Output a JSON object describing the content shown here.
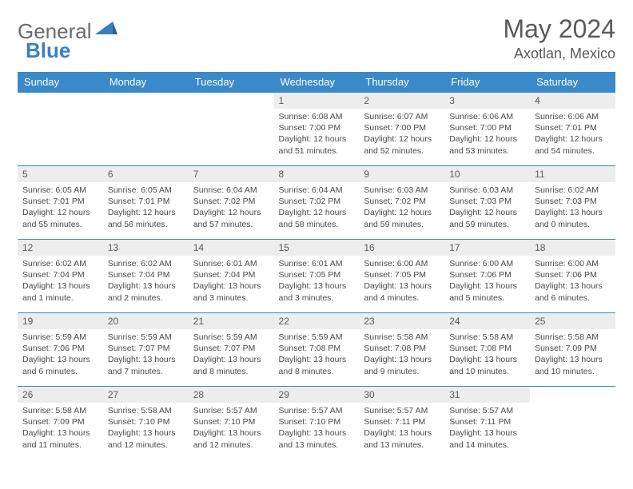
{
  "brand": {
    "part1": "General",
    "part2": "Blue"
  },
  "title": "May 2024",
  "location": "Axotlan, Mexico",
  "colors": {
    "header_bg": "#3a89c9",
    "header_text": "#ffffff",
    "daynum_bg": "#ededed",
    "border": "#3a89c9",
    "text": "#4a4a4a",
    "brand_blue": "#3a7fc4",
    "brand_gray": "#6b6b6b"
  },
  "day_headers": [
    "Sunday",
    "Monday",
    "Tuesday",
    "Wednesday",
    "Thursday",
    "Friday",
    "Saturday"
  ],
  "weeks": [
    [
      {
        "n": "",
        "lines": []
      },
      {
        "n": "",
        "lines": []
      },
      {
        "n": "",
        "lines": []
      },
      {
        "n": "1",
        "lines": [
          "Sunrise: 6:08 AM",
          "Sunset: 7:00 PM",
          "Daylight: 12 hours",
          "and 51 minutes."
        ]
      },
      {
        "n": "2",
        "lines": [
          "Sunrise: 6:07 AM",
          "Sunset: 7:00 PM",
          "Daylight: 12 hours",
          "and 52 minutes."
        ]
      },
      {
        "n": "3",
        "lines": [
          "Sunrise: 6:06 AM",
          "Sunset: 7:00 PM",
          "Daylight: 12 hours",
          "and 53 minutes."
        ]
      },
      {
        "n": "4",
        "lines": [
          "Sunrise: 6:06 AM",
          "Sunset: 7:01 PM",
          "Daylight: 12 hours",
          "and 54 minutes."
        ]
      }
    ],
    [
      {
        "n": "5",
        "lines": [
          "Sunrise: 6:05 AM",
          "Sunset: 7:01 PM",
          "Daylight: 12 hours",
          "and 55 minutes."
        ]
      },
      {
        "n": "6",
        "lines": [
          "Sunrise: 6:05 AM",
          "Sunset: 7:01 PM",
          "Daylight: 12 hours",
          "and 56 minutes."
        ]
      },
      {
        "n": "7",
        "lines": [
          "Sunrise: 6:04 AM",
          "Sunset: 7:02 PM",
          "Daylight: 12 hours",
          "and 57 minutes."
        ]
      },
      {
        "n": "8",
        "lines": [
          "Sunrise: 6:04 AM",
          "Sunset: 7:02 PM",
          "Daylight: 12 hours",
          "and 58 minutes."
        ]
      },
      {
        "n": "9",
        "lines": [
          "Sunrise: 6:03 AM",
          "Sunset: 7:02 PM",
          "Daylight: 12 hours",
          "and 59 minutes."
        ]
      },
      {
        "n": "10",
        "lines": [
          "Sunrise: 6:03 AM",
          "Sunset: 7:03 PM",
          "Daylight: 12 hours",
          "and 59 minutes."
        ]
      },
      {
        "n": "11",
        "lines": [
          "Sunrise: 6:02 AM",
          "Sunset: 7:03 PM",
          "Daylight: 13 hours",
          "and 0 minutes."
        ]
      }
    ],
    [
      {
        "n": "12",
        "lines": [
          "Sunrise: 6:02 AM",
          "Sunset: 7:04 PM",
          "Daylight: 13 hours",
          "and 1 minute."
        ]
      },
      {
        "n": "13",
        "lines": [
          "Sunrise: 6:02 AM",
          "Sunset: 7:04 PM",
          "Daylight: 13 hours",
          "and 2 minutes."
        ]
      },
      {
        "n": "14",
        "lines": [
          "Sunrise: 6:01 AM",
          "Sunset: 7:04 PM",
          "Daylight: 13 hours",
          "and 3 minutes."
        ]
      },
      {
        "n": "15",
        "lines": [
          "Sunrise: 6:01 AM",
          "Sunset: 7:05 PM",
          "Daylight: 13 hours",
          "and 3 minutes."
        ]
      },
      {
        "n": "16",
        "lines": [
          "Sunrise: 6:00 AM",
          "Sunset: 7:05 PM",
          "Daylight: 13 hours",
          "and 4 minutes."
        ]
      },
      {
        "n": "17",
        "lines": [
          "Sunrise: 6:00 AM",
          "Sunset: 7:06 PM",
          "Daylight: 13 hours",
          "and 5 minutes."
        ]
      },
      {
        "n": "18",
        "lines": [
          "Sunrise: 6:00 AM",
          "Sunset: 7:06 PM",
          "Daylight: 13 hours",
          "and 6 minutes."
        ]
      }
    ],
    [
      {
        "n": "19",
        "lines": [
          "Sunrise: 5:59 AM",
          "Sunset: 7:06 PM",
          "Daylight: 13 hours",
          "and 6 minutes."
        ]
      },
      {
        "n": "20",
        "lines": [
          "Sunrise: 5:59 AM",
          "Sunset: 7:07 PM",
          "Daylight: 13 hours",
          "and 7 minutes."
        ]
      },
      {
        "n": "21",
        "lines": [
          "Sunrise: 5:59 AM",
          "Sunset: 7:07 PM",
          "Daylight: 13 hours",
          "and 8 minutes."
        ]
      },
      {
        "n": "22",
        "lines": [
          "Sunrise: 5:59 AM",
          "Sunset: 7:08 PM",
          "Daylight: 13 hours",
          "and 8 minutes."
        ]
      },
      {
        "n": "23",
        "lines": [
          "Sunrise: 5:58 AM",
          "Sunset: 7:08 PM",
          "Daylight: 13 hours",
          "and 9 minutes."
        ]
      },
      {
        "n": "24",
        "lines": [
          "Sunrise: 5:58 AM",
          "Sunset: 7:08 PM",
          "Daylight: 13 hours",
          "and 10 minutes."
        ]
      },
      {
        "n": "25",
        "lines": [
          "Sunrise: 5:58 AM",
          "Sunset: 7:09 PM",
          "Daylight: 13 hours",
          "and 10 minutes."
        ]
      }
    ],
    [
      {
        "n": "26",
        "lines": [
          "Sunrise: 5:58 AM",
          "Sunset: 7:09 PM",
          "Daylight: 13 hours",
          "and 11 minutes."
        ]
      },
      {
        "n": "27",
        "lines": [
          "Sunrise: 5:58 AM",
          "Sunset: 7:10 PM",
          "Daylight: 13 hours",
          "and 12 minutes."
        ]
      },
      {
        "n": "28",
        "lines": [
          "Sunrise: 5:57 AM",
          "Sunset: 7:10 PM",
          "Daylight: 13 hours",
          "and 12 minutes."
        ]
      },
      {
        "n": "29",
        "lines": [
          "Sunrise: 5:57 AM",
          "Sunset: 7:10 PM",
          "Daylight: 13 hours",
          "and 13 minutes."
        ]
      },
      {
        "n": "30",
        "lines": [
          "Sunrise: 5:57 AM",
          "Sunset: 7:11 PM",
          "Daylight: 13 hours",
          "and 13 minutes."
        ]
      },
      {
        "n": "31",
        "lines": [
          "Sunrise: 5:57 AM",
          "Sunset: 7:11 PM",
          "Daylight: 13 hours",
          "and 14 minutes."
        ]
      },
      {
        "n": "",
        "lines": []
      }
    ]
  ]
}
